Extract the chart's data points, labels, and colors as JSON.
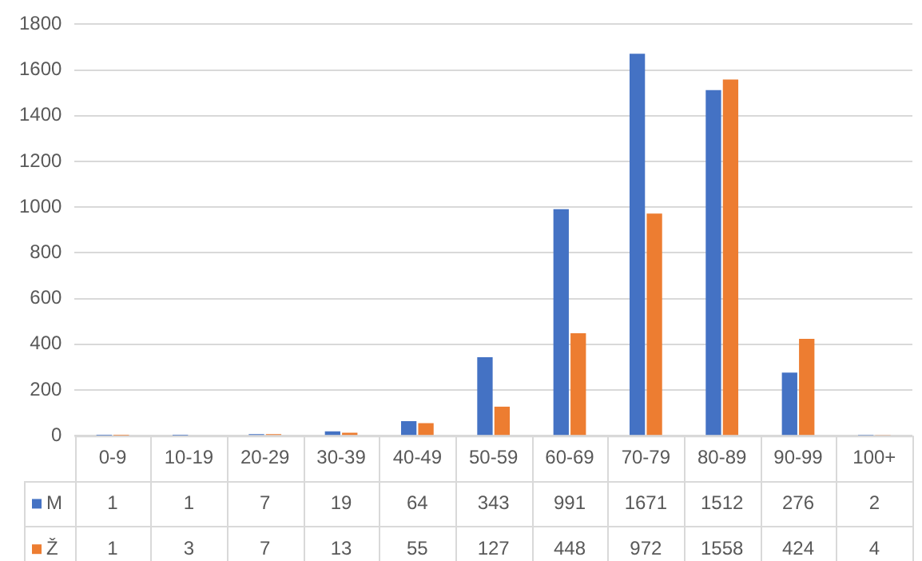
{
  "chart_data": {
    "type": "bar",
    "categories": [
      "0-9",
      "10-19",
      "20-29",
      "30-39",
      "40-49",
      "50-59",
      "60-69",
      "70-79",
      "80-89",
      "90-99",
      "100+"
    ],
    "series": [
      {
        "name": "M",
        "color": "#4472c4",
        "values": [
          1,
          1,
          7,
          19,
          64,
          343,
          991,
          1671,
          1512,
          276,
          2
        ]
      },
      {
        "name": "Ž",
        "color": "#ed7d31",
        "values": [
          1,
          3,
          7,
          13,
          55,
          127,
          448,
          972,
          1558,
          424,
          4
        ]
      }
    ],
    "ylim": [
      0,
      1800
    ],
    "yticks": [
      0,
      200,
      400,
      600,
      800,
      1000,
      1200,
      1400,
      1600,
      1800
    ],
    "grid": "y",
    "legend": "bottom",
    "data_labels": true
  }
}
